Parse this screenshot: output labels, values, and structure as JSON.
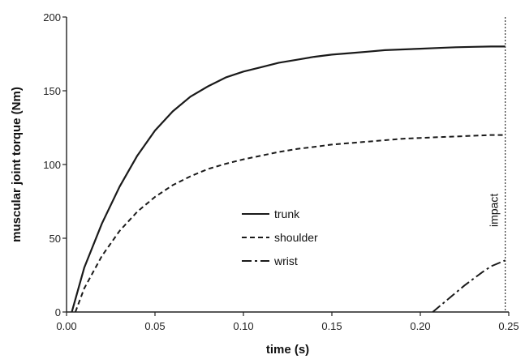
{
  "chart_data": {
    "type": "line",
    "xlabel": "time (s)",
    "ylabel": "muscular joint torque (Nm)",
    "xlim": [
      0,
      0.25
    ],
    "ylim": [
      0,
      200
    ],
    "x_ticks": [
      "0.00",
      "0.05",
      "0.10",
      "0.15",
      "0.20",
      "0.25"
    ],
    "y_ticks": [
      "0",
      "50",
      "100",
      "150",
      "200"
    ],
    "grid": false,
    "legend_position": "center",
    "series": [
      {
        "name": "trunk",
        "style": "solid",
        "x": [
          0.003,
          0.01,
          0.02,
          0.03,
          0.04,
          0.05,
          0.06,
          0.07,
          0.08,
          0.09,
          0.1,
          0.11,
          0.12,
          0.13,
          0.14,
          0.15,
          0.16,
          0.17,
          0.18,
          0.19,
          0.2,
          0.21,
          0.22,
          0.23,
          0.24,
          0.248
        ],
        "y": [
          0,
          30,
          60,
          85,
          106,
          123,
          136,
          146,
          153,
          159,
          163,
          166,
          169,
          171,
          173,
          174.5,
          175.5,
          176.5,
          177.5,
          178,
          178.5,
          179,
          179.5,
          179.8,
          180,
          180
        ]
      },
      {
        "name": "shoulder",
        "style": "dashed",
        "x": [
          0.005,
          0.01,
          0.02,
          0.03,
          0.04,
          0.05,
          0.06,
          0.07,
          0.08,
          0.09,
          0.1,
          0.11,
          0.12,
          0.13,
          0.14,
          0.15,
          0.16,
          0.17,
          0.18,
          0.19,
          0.2,
          0.21,
          0.22,
          0.23,
          0.24,
          0.248
        ],
        "y": [
          0,
          16,
          38,
          55,
          68,
          78,
          86,
          92,
          97,
          100.5,
          103.5,
          106,
          108.5,
          110.5,
          112,
          113.5,
          114.5,
          115.5,
          116.5,
          117.5,
          118,
          118.5,
          119,
          119.5,
          120,
          120
        ]
      },
      {
        "name": "wrist",
        "style": "dash-dot",
        "x": [
          0.207,
          0.215,
          0.225,
          0.235,
          0.24,
          0.248
        ],
        "y": [
          0,
          8,
          18,
          27,
          31,
          35
        ]
      }
    ],
    "impact_line": {
      "x": 0.248,
      "style": "dotted",
      "label": "impact"
    }
  }
}
